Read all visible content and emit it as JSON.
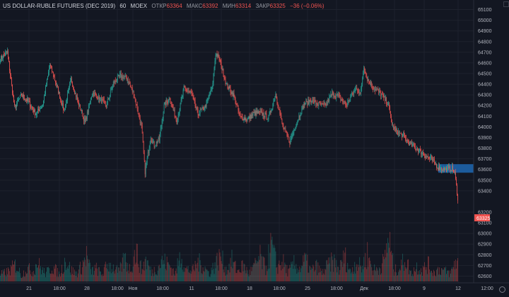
{
  "legend": {
    "symbol": "US DOLLAR-RUBLE FUTURES (DEC 2019)",
    "interval": "60",
    "exchange": "MOEX",
    "open_label": "ОТКР",
    "open_value": "63364",
    "high_label": "МАКС",
    "high_value": "63392",
    "low_label": "МИН",
    "low_value": "63314",
    "close_label": "ЗАКР",
    "close_value": "63325",
    "change_value": "−36 (−0.06%)"
  },
  "colors": {
    "background": "#131722",
    "up": "#26a69a",
    "down": "#ef5350",
    "grid": "#1e222d",
    "highlight_zone": "#1c5b9c",
    "axis_text": "#b2b5be"
  },
  "price_badge": "63325",
  "chart_data": {
    "type": "candlestick",
    "symbol": "US DOLLAR-RUBLE FUTURES (DEC 2019)",
    "interval": "60",
    "y_ticks": [
      65100,
      65000,
      64900,
      64800,
      64700,
      64600,
      64500,
      64400,
      64300,
      64200,
      64100,
      64000,
      63900,
      63800,
      63700,
      63600,
      63500,
      63400,
      63200,
      63100,
      63000,
      62900,
      62800,
      62700,
      62600
    ],
    "y_tick_labels": [
      "65100",
      "65000",
      "64900",
      "64800",
      "64700",
      "64600",
      "64500",
      "64400",
      "64300",
      "64200",
      "64100",
      "64000",
      "63900",
      "63800",
      "63700",
      "63600",
      "63500",
      "63400",
      "63200",
      "63100",
      "63000",
      "62900",
      "62800",
      "62700",
      "62600"
    ],
    "x_tick_labels": [
      "21",
      "18:00",
      "28",
      "18:00",
      "Ноя",
      "18:00",
      "11",
      "18:00",
      "18",
      "18:00",
      "25",
      "18:00",
      "Дек",
      "18:00",
      "9",
      "12",
      "12:00"
    ],
    "price_ylim": [
      62550,
      65150
    ],
    "price_scale_top": 65100,
    "price_scale_bottom": 63400,
    "last_price": 63325,
    "highlight_zone": {
      "low": 63570,
      "high": 63650,
      "from_index": 308
    },
    "path": [
      [
        0,
        64640
      ],
      [
        10,
        64700
      ],
      [
        20,
        64180
      ],
      [
        30,
        64300
      ],
      [
        40,
        64230
      ],
      [
        50,
        64120
      ],
      [
        60,
        64210
      ],
      [
        70,
        64580
      ],
      [
        80,
        64380
      ],
      [
        90,
        64150
      ],
      [
        100,
        64440
      ],
      [
        110,
        64230
      ],
      [
        120,
        64040
      ],
      [
        130,
        64320
      ],
      [
        140,
        64270
      ],
      [
        150,
        64200
      ],
      [
        160,
        64410
      ],
      [
        170,
        64480
      ],
      [
        180,
        64450
      ],
      [
        190,
        64280
      ],
      [
        200,
        64000
      ],
      [
        205,
        63580
      ],
      [
        208,
        63700
      ],
      [
        213,
        63900
      ],
      [
        218,
        63830
      ],
      [
        225,
        63880
      ],
      [
        232,
        64200
      ],
      [
        240,
        64270
      ],
      [
        250,
        64050
      ],
      [
        260,
        64360
      ],
      [
        270,
        64320
      ],
      [
        280,
        64120
      ],
      [
        290,
        64190
      ],
      [
        300,
        64360
      ],
      [
        305,
        64690
      ],
      [
        310,
        64640
      ],
      [
        320,
        64400
      ],
      [
        330,
        64300
      ],
      [
        340,
        64090
      ],
      [
        350,
        64070
      ],
      [
        360,
        64130
      ],
      [
        370,
        64130
      ],
      [
        380,
        64080
      ],
      [
        390,
        64310
      ],
      [
        400,
        64000
      ],
      [
        410,
        63860
      ],
      [
        420,
        64050
      ],
      [
        430,
        64210
      ],
      [
        440,
        64250
      ],
      [
        450,
        64210
      ],
      [
        460,
        64200
      ],
      [
        470,
        64310
      ],
      [
        480,
        64280
      ],
      [
        490,
        64200
      ],
      [
        500,
        64320
      ],
      [
        505,
        64370
      ],
      [
        510,
        64300
      ],
      [
        515,
        64570
      ],
      [
        520,
        64450
      ],
      [
        530,
        64360
      ],
      [
        540,
        64300
      ],
      [
        550,
        64210
      ],
      [
        555,
        64020
      ],
      [
        560,
        63960
      ],
      [
        570,
        63920
      ],
      [
        580,
        63840
      ],
      [
        590,
        63800
      ],
      [
        600,
        63740
      ],
      [
        610,
        63700
      ],
      [
        620,
        63620
      ],
      [
        630,
        63600
      ],
      [
        640,
        63610
      ],
      [
        644,
        63560
      ],
      [
        648,
        63330
      ]
    ],
    "volume_profile": [
      [
        0,
        12
      ],
      [
        12,
        18
      ],
      [
        22,
        30
      ],
      [
        30,
        10
      ],
      [
        38,
        24
      ],
      [
        46,
        16
      ],
      [
        52,
        34
      ],
      [
        58,
        22
      ],
      [
        64,
        14
      ],
      [
        74,
        26
      ],
      [
        84,
        12
      ],
      [
        92,
        38
      ],
      [
        100,
        20
      ],
      [
        108,
        14
      ],
      [
        116,
        28
      ],
      [
        122,
        46
      ],
      [
        128,
        18
      ],
      [
        136,
        22
      ],
      [
        144,
        12
      ],
      [
        152,
        30
      ],
      [
        160,
        24
      ],
      [
        168,
        16
      ],
      [
        176,
        40
      ],
      [
        184,
        20
      ],
      [
        192,
        54
      ],
      [
        200,
        20
      ],
      [
        206,
        38
      ],
      [
        214,
        16
      ],
      [
        222,
        24
      ],
      [
        230,
        36
      ],
      [
        240,
        28
      ],
      [
        248,
        14
      ],
      [
        256,
        48
      ],
      [
        262,
        22
      ],
      [
        272,
        18
      ],
      [
        280,
        34
      ],
      [
        288,
        26
      ],
      [
        296,
        14
      ],
      [
        304,
        30
      ],
      [
        312,
        44
      ],
      [
        320,
        20
      ],
      [
        328,
        36
      ],
      [
        336,
        18
      ],
      [
        344,
        28
      ],
      [
        352,
        14
      ],
      [
        360,
        26
      ],
      [
        368,
        42
      ],
      [
        376,
        22
      ],
      [
        384,
        64
      ],
      [
        392,
        26
      ],
      [
        400,
        34
      ],
      [
        408,
        16
      ],
      [
        416,
        30
      ],
      [
        424,
        22
      ],
      [
        432,
        38
      ],
      [
        440,
        18
      ],
      [
        448,
        26
      ],
      [
        456,
        14
      ],
      [
        464,
        28
      ],
      [
        472,
        36
      ],
      [
        480,
        20
      ],
      [
        488,
        44
      ],
      [
        496,
        16
      ],
      [
        504,
        34
      ],
      [
        512,
        24
      ],
      [
        520,
        48
      ],
      [
        528,
        20
      ],
      [
        536,
        22
      ],
      [
        544,
        36
      ],
      [
        550,
        78
      ],
      [
        558,
        18
      ],
      [
        566,
        24
      ],
      [
        574,
        40
      ],
      [
        582,
        14
      ],
      [
        590,
        26
      ],
      [
        598,
        20
      ],
      [
        606,
        30
      ],
      [
        614,
        16
      ],
      [
        622,
        22
      ],
      [
        630,
        18
      ],
      [
        638,
        14
      ],
      [
        644,
        34
      ]
    ]
  }
}
